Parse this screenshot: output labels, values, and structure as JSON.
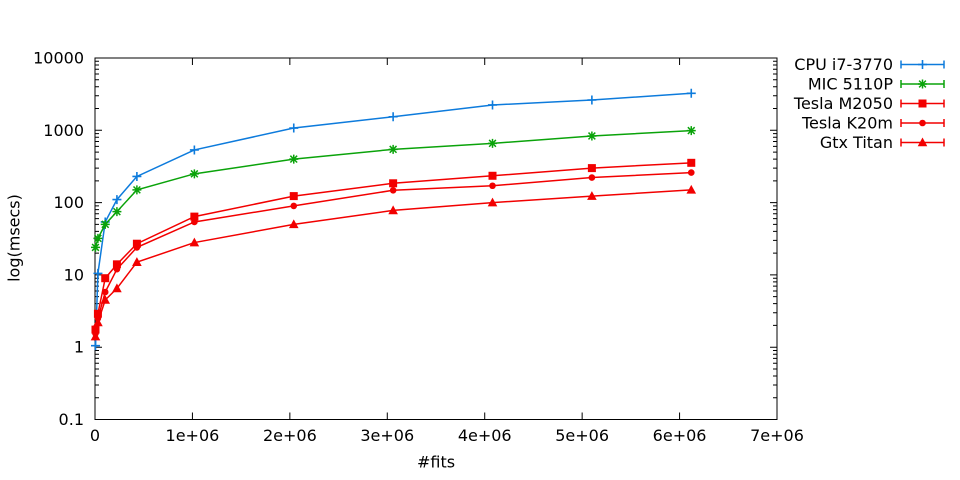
{
  "chart_data": {
    "type": "line",
    "title": "",
    "grid": false,
    "legend_position": "outside-top-right",
    "background_color": "#ffffff",
    "axis_color": "#000000",
    "x_axis": {
      "label": "#fits",
      "scale": "linear",
      "min": 0,
      "max": 7000000,
      "tick_values": [
        0,
        1000000,
        2000000,
        3000000,
        4000000,
        5000000,
        6000000,
        7000000
      ],
      "tick_labels": [
        "0",
        "1e+06",
        "2e+06",
        "3e+06",
        "4e+06",
        "5e+06",
        "6e+06",
        "7e+06"
      ]
    },
    "y_axis": {
      "label": "log(msecs)",
      "scale": "log",
      "min": 0.1,
      "max": 10000,
      "tick_values": [
        0.1,
        1,
        10,
        100,
        1000,
        10000
      ],
      "tick_labels": [
        "0.1",
        "1",
        "10",
        "100",
        "1000",
        "10000"
      ]
    },
    "x": [
      5000,
      30000,
      105000,
      225000,
      430000,
      1020000,
      2040000,
      3060000,
      4080000,
      5100000,
      6120000
    ],
    "series": [
      {
        "name": "CPU i7-3770",
        "color": "#0d7bdc",
        "marker": "plus",
        "values": [
          1.05,
          10.5,
          54,
          110,
          230,
          535,
          1075,
          1540,
          2240,
          2625,
          3250
        ]
      },
      {
        "name": "MIC 5110P",
        "color": "#0aa30a",
        "marker": "asterisk",
        "values": [
          24,
          32,
          50,
          75,
          150,
          250,
          400,
          545,
          660,
          835,
          990
        ]
      },
      {
        "name": "Tesla M2050",
        "color": "#f20000",
        "marker": "square",
        "values": [
          1.75,
          2.9,
          9,
          14,
          27,
          64,
          123,
          185,
          235,
          300,
          355
        ]
      },
      {
        "name": "Tesla K20m",
        "color": "#f20000",
        "marker": "circle",
        "values": [
          1.55,
          2.5,
          5.8,
          12,
          24,
          54,
          90,
          148,
          171,
          222,
          260
        ]
      },
      {
        "name": "Gtx Titan",
        "color": "#f20000",
        "marker": "triangle",
        "values": [
          1.4,
          2.2,
          4.5,
          6.5,
          15,
          28,
          50,
          78,
          100,
          123,
          150
        ]
      }
    ]
  }
}
